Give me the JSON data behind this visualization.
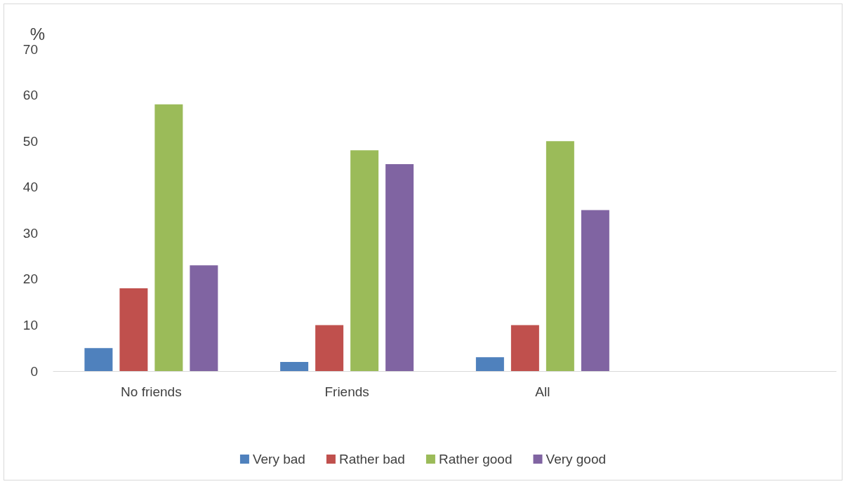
{
  "chart_data": {
    "type": "bar",
    "ylabel": "%",
    "categories": [
      "No friends",
      "Friends",
      "All",
      null
    ],
    "series": [
      {
        "name": "Very bad",
        "color": "#4f81bd",
        "values": [
          5,
          2,
          3,
          null
        ]
      },
      {
        "name": "Rather bad",
        "color": "#c0504d",
        "values": [
          18,
          10,
          10,
          null
        ]
      },
      {
        "name": "Rather good",
        "color": "#9bbb59",
        "values": [
          58,
          48,
          50,
          null
        ]
      },
      {
        "name": "Very good",
        "color": "#8064a2",
        "values": [
          23,
          45,
          35,
          null
        ]
      }
    ],
    "ylim": [
      0,
      70
    ],
    "yticks": [
      0,
      10,
      20,
      30,
      40,
      50,
      60,
      70
    ],
    "grid": false,
    "legend": "bottom"
  }
}
